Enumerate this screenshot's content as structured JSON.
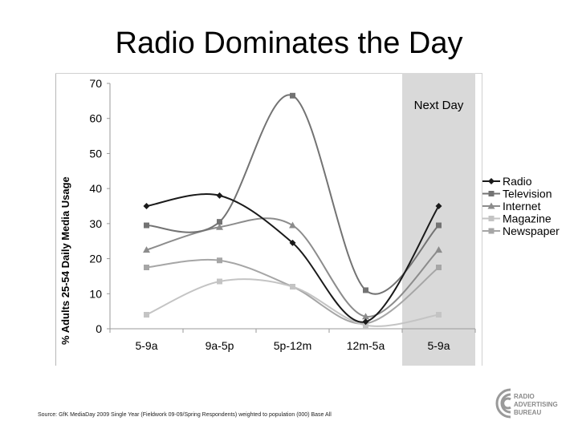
{
  "title": "Radio Dominates the Day",
  "source_note": "Source: GfK MediaDay 2009 Single Year (Fieldwork 09-09/Spring Respondents) weighted to population (000) Base All",
  "logo": {
    "line1": "RADIO",
    "line2": "ADVERTISING",
    "line3": "BUREAU",
    "icon": "rab-swirl-logo"
  },
  "colors": {
    "highlight": "#d9d9d9",
    "radio": "#1a1a1a",
    "television": "#737373",
    "internet": "#8c8c8c",
    "magazine": "#c4c4c4",
    "newspaper": "#a6a6a6"
  },
  "chart_data": {
    "type": "line",
    "title": "Radio Dominates the Day",
    "ylabel": "% Adults 25-54 Daily Media Usage",
    "xlabel": "",
    "categories": [
      "5-9a",
      "9a-5p",
      "5p-12m",
      "12m-5a",
      "5-9a"
    ],
    "ylim": [
      0,
      70
    ],
    "yticks": [
      0,
      10,
      20,
      30,
      40,
      50,
      60,
      70
    ],
    "grid": false,
    "legend_position": "right",
    "highlight": {
      "category_index": 4,
      "label": "Next Day"
    },
    "series": [
      {
        "name": "Radio",
        "marker": "diamond",
        "values": [
          35,
          38,
          24.5,
          2,
          35
        ]
      },
      {
        "name": "Television",
        "marker": "square",
        "values": [
          29.5,
          30.5,
          66.5,
          11,
          29.5
        ]
      },
      {
        "name": "Internet",
        "marker": "triangle",
        "values": [
          22.5,
          29,
          29.5,
          3.5,
          22.5
        ]
      },
      {
        "name": "Magazine",
        "marker": "square",
        "values": [
          4,
          13.5,
          12,
          1,
          4
        ]
      },
      {
        "name": "Newspaper",
        "marker": "square",
        "values": [
          17.5,
          19.5,
          12,
          1.5,
          17.5
        ]
      }
    ]
  }
}
